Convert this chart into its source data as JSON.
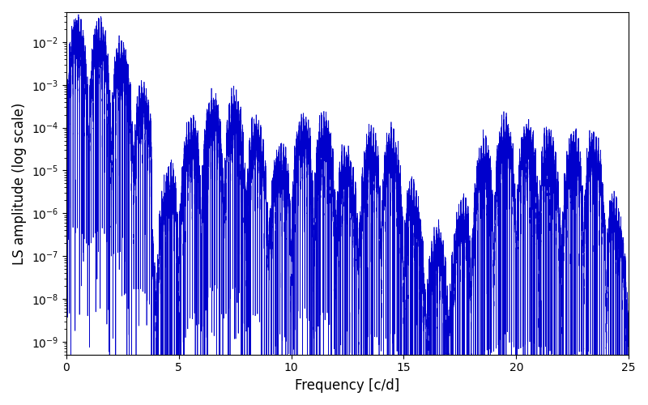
{
  "xlabel": "Frequency [c/d]",
  "ylabel": "LS amplitude (log scale)",
  "xlim": [
    0,
    25
  ],
  "ylim": [
    5e-10,
    0.05
  ],
  "line_color": "#0000CC",
  "line_width": 0.5,
  "background_color": "#ffffff",
  "xlabel_fontsize": 12,
  "ylabel_fontsize": 12,
  "tick_fontsize": 10,
  "fig_width": 8.0,
  "fig_height": 5.0,
  "dpi": 100
}
